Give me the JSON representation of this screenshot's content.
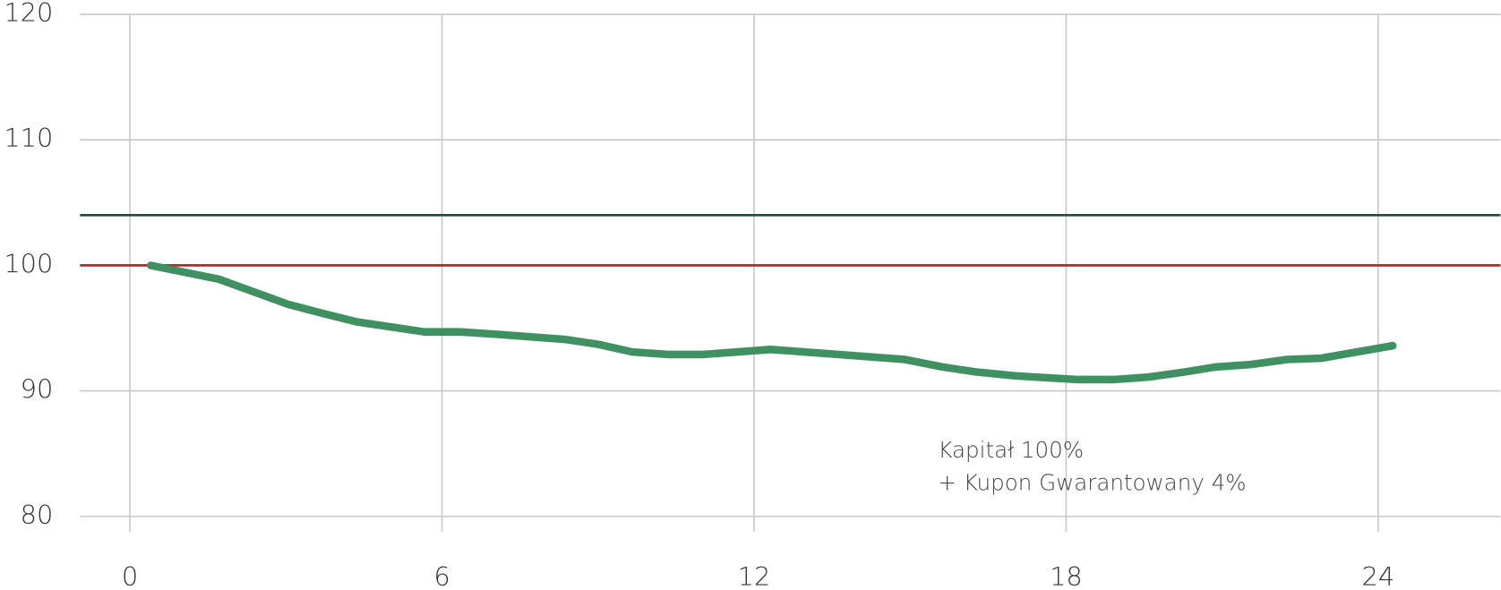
{
  "chart_data": {
    "type": "line",
    "x": [
      0.4,
      1.71,
      3.04,
      3.68,
      4.36,
      5.66,
      6.34,
      7.08,
      8.37,
      9.01,
      9.66,
      10.34,
      11.03,
      12.32,
      13.61,
      14.9,
      15.63,
      16.28,
      17.01,
      18.24,
      18.9,
      19.59,
      20.27,
      20.87,
      21.55,
      22.25,
      22.9,
      24.28
    ],
    "values": [
      100,
      98.9,
      96.9,
      96.2,
      95.5,
      94.7,
      94.7,
      94.5,
      94.1,
      93.7,
      93.1,
      92.9,
      92.9,
      93.3,
      92.9,
      92.5,
      91.9,
      91.5,
      91.2,
      90.9,
      90.9,
      91.1,
      91.5,
      91.9,
      92.1,
      92.5,
      92.6,
      93.6
    ],
    "color": "#3f9162",
    "reference_lines": [
      {
        "value": 104,
        "color": "#1f4d33"
      },
      {
        "value": 100,
        "color": "#cc1f1f"
      }
    ],
    "annotation": [
      "Kapitał 100%",
      "+ Kupon Gwarantowany 4%"
    ],
    "xlim": [
      -0.96,
      26.35
    ],
    "ylim": [
      80,
      120
    ],
    "xticks": [
      0,
      6,
      12,
      18,
      24
    ],
    "yticks": [
      80,
      90,
      100,
      110,
      120
    ],
    "grid": true
  }
}
